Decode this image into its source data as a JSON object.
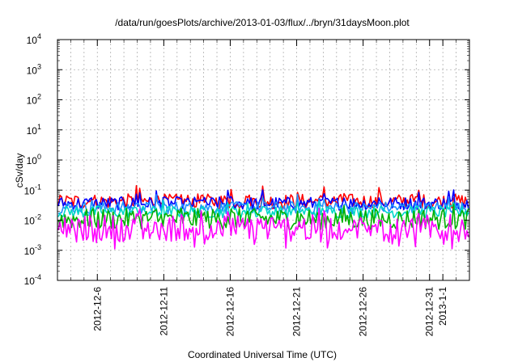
{
  "chart_data": {
    "type": "line",
    "title": "/data/run/goesPlots/archive/2013-01-03/flux/../bryn/31daysMoon.plot",
    "xlabel": "Coordinated Universal Time (UTC)",
    "ylabel": "cSv/day",
    "x_range": [
      "2012-12-03",
      "2013-01-03"
    ],
    "ylim": [
      0.0001,
      10000
    ],
    "y_scale": "log",
    "grid": true,
    "legend": "none",
    "y_ticks": [
      {
        "base": "10",
        "exp": "-4",
        "value": 0.0001
      },
      {
        "base": "10",
        "exp": "-3",
        "value": 0.001
      },
      {
        "base": "10",
        "exp": "-2",
        "value": 0.01
      },
      {
        "base": "10",
        "exp": "-1",
        "value": 0.1
      },
      {
        "base": "10",
        "exp": "0",
        "value": 1
      },
      {
        "base": "10",
        "exp": "1",
        "value": 10
      },
      {
        "base": "10",
        "exp": "2",
        "value": 100
      },
      {
        "base": "10",
        "exp": "3",
        "value": 1000
      },
      {
        "base": "10",
        "exp": "4",
        "value": 10000
      }
    ],
    "x_ticks": [
      {
        "label": "2012-12-6",
        "value": "2012-12-06"
      },
      {
        "label": "2012-12-11",
        "value": "2012-12-11"
      },
      {
        "label": "2012-12-16",
        "value": "2012-12-16"
      },
      {
        "label": "2012-12-21",
        "value": "2012-12-21"
      },
      {
        "label": "2012-12-26",
        "value": "2012-12-26"
      },
      {
        "label": "2012-12-31",
        "value": "2012-12-31"
      },
      {
        "label": "2013-1-1",
        "value": "2013-01-01"
      }
    ],
    "series": [
      {
        "color": "#ff0000",
        "base": 0.042,
        "spread": 0.25,
        "spike": 2.6
      },
      {
        "color": "#0000ff",
        "base": 0.036,
        "spread": 0.22,
        "spike": 2.2
      },
      {
        "color": "#1e90ff",
        "base": 0.026,
        "spread": 0.2,
        "spike": 2.0
      },
      {
        "color": "#00d8c8",
        "base": 0.019,
        "spread": 0.2,
        "spike": 1.6
      },
      {
        "color": "#00b000",
        "base": 0.011,
        "spread": 0.35,
        "spike": 1.5
      },
      {
        "color": "#ff00ff",
        "base": 0.0055,
        "spread": 0.45,
        "spike": 2.2
      }
    ]
  }
}
